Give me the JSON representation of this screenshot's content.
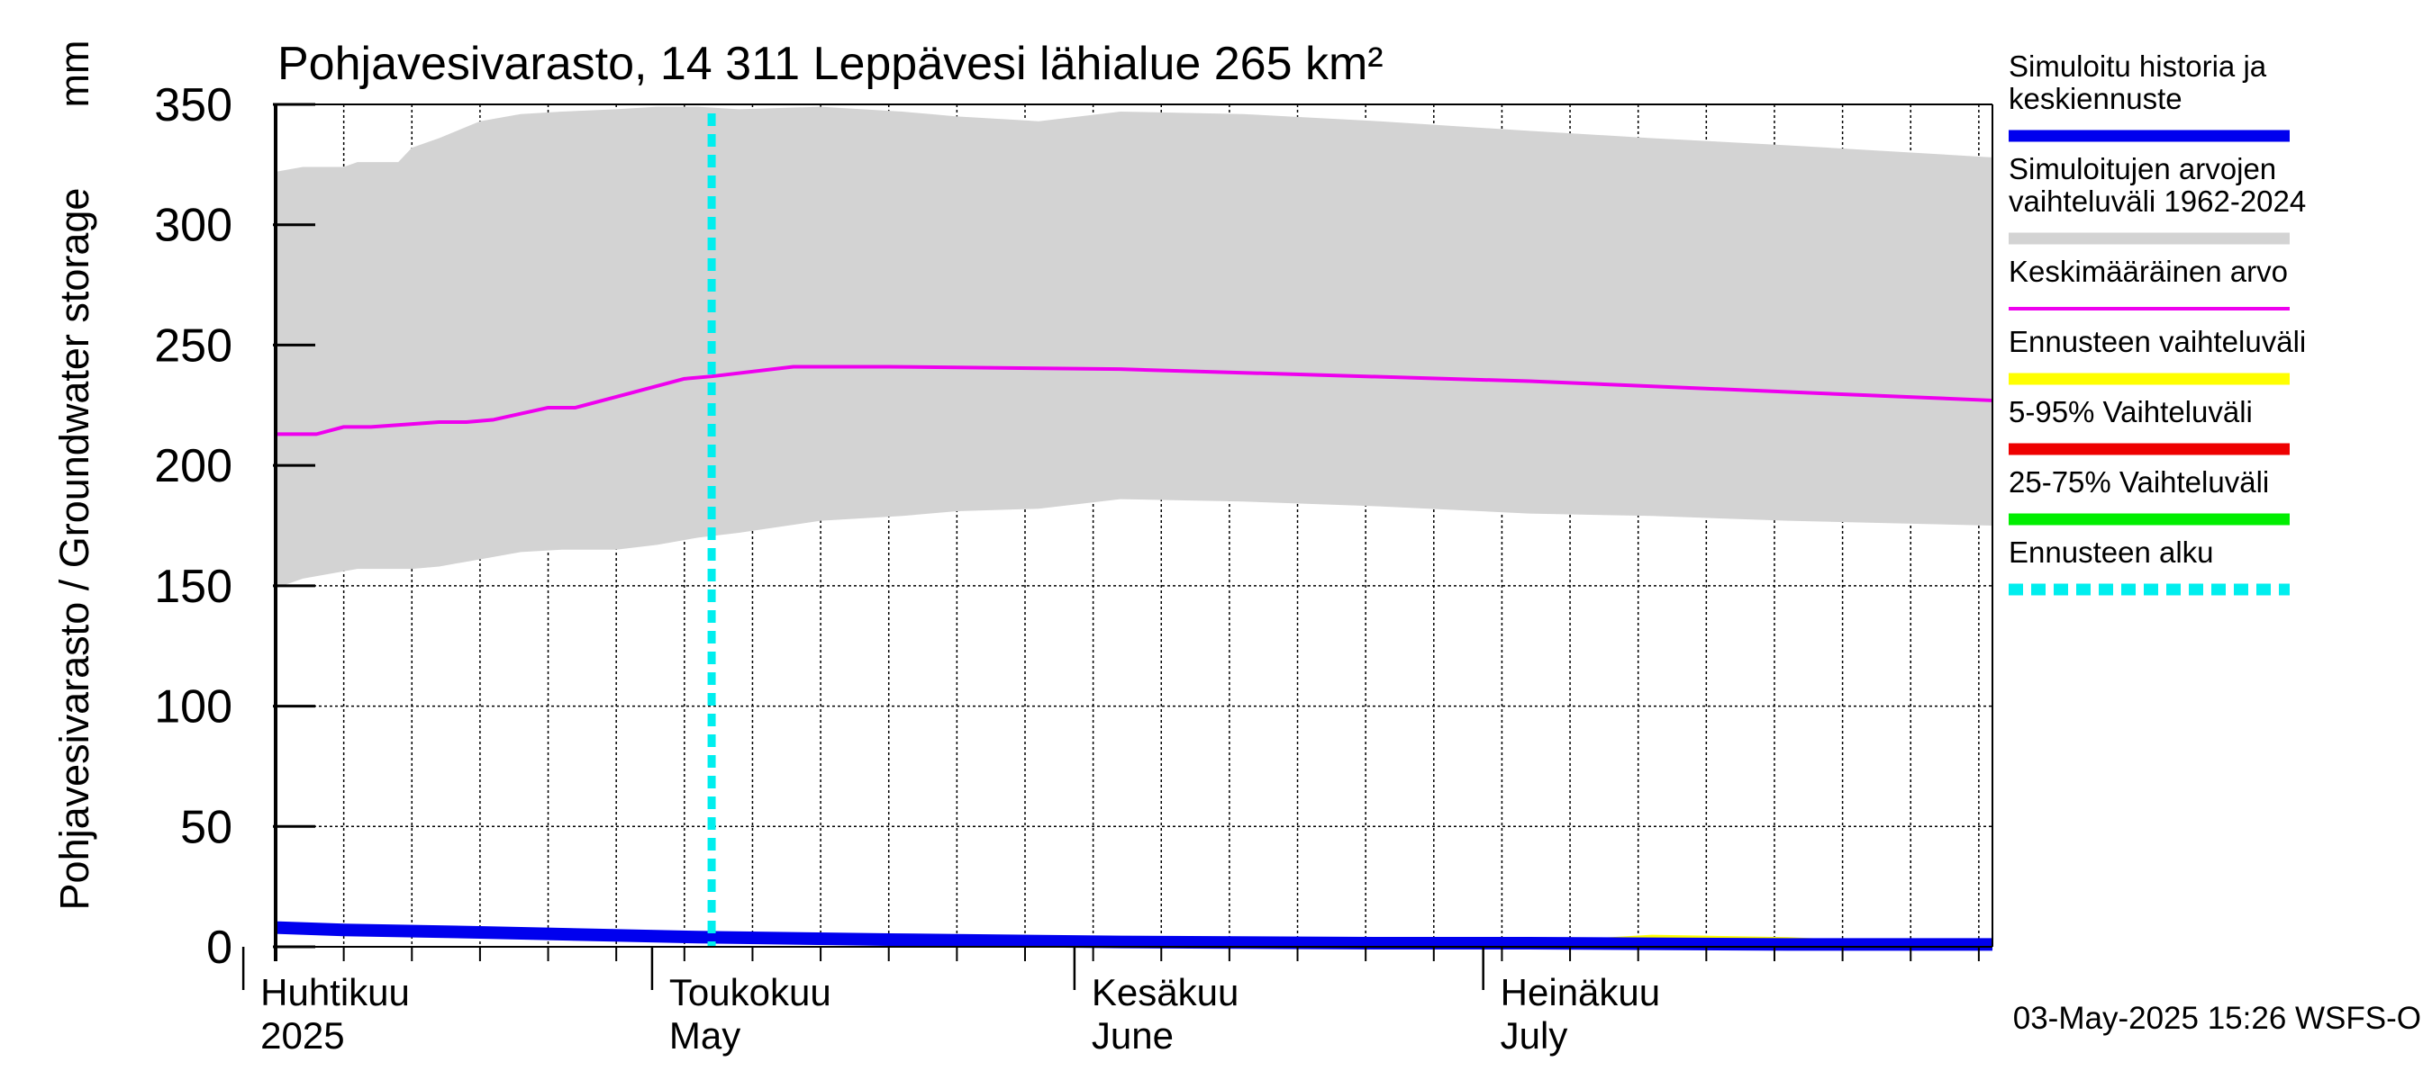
{
  "chart_data": {
    "type": "line",
    "title": "Pohjavesivarasto, 14 311 Leppävesi lähialue 265 km²",
    "ylabel": "Pohjavesivarasto / Groundwater storage",
    "yunit": "mm",
    "ylim": [
      0,
      350
    ],
    "yticks": [
      0,
      50,
      100,
      150,
      200,
      250,
      300,
      350
    ],
    "xlim": [
      "2025-03-31",
      "2025-08-04"
    ],
    "grid": true,
    "legend_position": "right",
    "timestamp": "03-May-2025 15:26 WSFS-O",
    "month_labels": [
      {
        "date": "2025-04-01",
        "fi": "Huhtikuu",
        "en": "2025"
      },
      {
        "date": "2025-05-01",
        "fi": "Toukokuu",
        "en": "May"
      },
      {
        "date": "2025-06-01",
        "fi": "Kesäkuu",
        "en": "June"
      },
      {
        "date": "2025-07-01",
        "fi": "Heinäkuu",
        "en": "July"
      }
    ],
    "legend": [
      {
        "label": "Simuloitu historia ja keskiennuste",
        "lines": [
          "Simuloitu historia ja",
          "keskiennuste"
        ],
        "color": "#0000ee",
        "style": "thick"
      },
      {
        "label": "Simuloitujen arvojen vaihteluväli 1962-2024",
        "lines": [
          "Simuloitujen arvojen",
          "vaihteluväli 1962-2024"
        ],
        "color": "#d3d3d3",
        "style": "thick"
      },
      {
        "label": "Keskimääräinen arvo",
        "lines": [
          "Keskimääräinen arvo"
        ],
        "color": "#ee00ee",
        "style": "thin"
      },
      {
        "label": "Ennusteen vaihteluväli",
        "lines": [
          "Ennusteen vaihteluväli"
        ],
        "color": "#ffff00",
        "style": "thick"
      },
      {
        "label": "5-95% Vaihteluväli",
        "lines": [
          "5-95% Vaihteluväli"
        ],
        "color": "#ee0000",
        "style": "thick"
      },
      {
        "label": "25-75% Vaihteluväli",
        "lines": [
          "25-75% Vaihteluväli"
        ],
        "color": "#00ee00",
        "style": "thick"
      },
      {
        "label": "Ennusteen alku",
        "lines": [
          "Ennusteen alku"
        ],
        "color": "#00eeee",
        "style": "dashed"
      }
    ],
    "forecast_start": "2025-05-02",
    "series": [
      {
        "name": "Simuloitujen arvojen vaihteluväli 1962-2024",
        "kind": "band",
        "color": "#d3d3d3",
        "x": [
          "2025-03-31",
          "2025-04-02",
          "2025-04-05",
          "2025-04-06",
          "2025-04-09",
          "2025-04-10",
          "2025-04-12",
          "2025-04-15",
          "2025-04-18",
          "2025-04-21",
          "2025-04-25",
          "2025-04-28",
          "2025-05-01",
          "2025-05-04",
          "2025-05-10",
          "2025-05-16",
          "2025-05-20",
          "2025-05-26",
          "2025-06-01",
          "2025-06-10",
          "2025-06-20",
          "2025-07-01",
          "2025-07-10",
          "2025-07-20",
          "2025-08-04"
        ],
        "lower": [
          149,
          153,
          156,
          157,
          157,
          157,
          158,
          161,
          164,
          165,
          165,
          167,
          170,
          172,
          177,
          179,
          181,
          182,
          186,
          185,
          183,
          180,
          179,
          177,
          175
        ],
        "upper": [
          322,
          324,
          324,
          326,
          326,
          332,
          336,
          343,
          346,
          347,
          348,
          349,
          349,
          348,
          349,
          347,
          345,
          343,
          347,
          346,
          343,
          339,
          336,
          333,
          328
        ]
      },
      {
        "name": "Ennusteen vaihteluväli",
        "kind": "band",
        "color": "#ffff00",
        "x": [
          "2025-05-02",
          "2025-06-01",
          "2025-06-10",
          "2025-06-20",
          "2025-07-01",
          "2025-07-10",
          "2025-07-20",
          "2025-07-28",
          "2025-08-04"
        ],
        "lower": [
          3,
          1,
          0,
          0,
          0,
          0,
          0,
          0,
          0
        ],
        "upper": [
          4,
          2,
          3,
          2,
          2,
          5,
          4,
          2,
          1
        ]
      },
      {
        "name": "Keskimääräinen arvo",
        "kind": "line",
        "color": "#ee00ee",
        "x": [
          "2025-03-31",
          "2025-04-03",
          "2025-04-05",
          "2025-04-07",
          "2025-04-12",
          "2025-04-14",
          "2025-04-16",
          "2025-04-20",
          "2025-04-22",
          "2025-04-26",
          "2025-04-30",
          "2025-05-02",
          "2025-05-08",
          "2025-05-15",
          "2025-06-01",
          "2025-07-01",
          "2025-08-04"
        ],
        "values": [
          213,
          213,
          216,
          216,
          218,
          218,
          219,
          224,
          224,
          230,
          236,
          237,
          241,
          241,
          240,
          235,
          227
        ]
      },
      {
        "name": "Simuloitu historia ja keskiennuste",
        "kind": "line",
        "color": "#0000ee",
        "x": [
          "2025-03-31",
          "2025-04-05",
          "2025-04-15",
          "2025-05-01",
          "2025-05-15",
          "2025-06-01",
          "2025-06-20",
          "2025-07-01",
          "2025-07-20",
          "2025-08-04"
        ],
        "values": [
          8,
          7,
          6,
          4,
          3,
          2,
          1.5,
          1.5,
          1,
          1
        ]
      }
    ]
  }
}
